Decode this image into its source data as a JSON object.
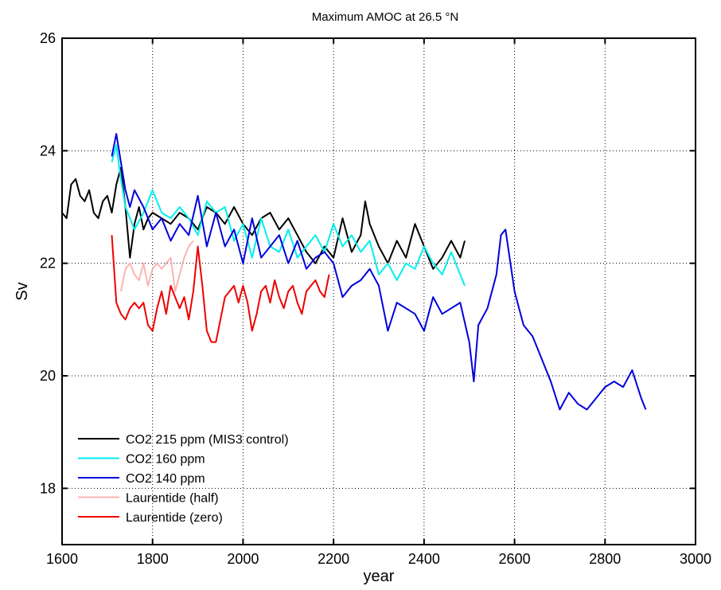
{
  "chart_data": {
    "type": "line",
    "title": "Maximum AMOC at 26.5 °N",
    "xlabel": "year",
    "ylabel": "Sv",
    "xlim": [
      1600,
      3000
    ],
    "ylim": [
      17,
      26
    ],
    "grid": true,
    "legend_position": "bottom-left",
    "x_ticks": [
      "1600",
      "1800",
      "2000",
      "2200",
      "2400",
      "2600",
      "2800",
      "3000"
    ],
    "y_ticks": [
      "18",
      "20",
      "22",
      "24",
      "26"
    ],
    "series": [
      {
        "name": "CO2 215 ppm (MIS3 control)",
        "color": "#000000",
        "x": [
          1600,
          1610,
          1620,
          1630,
          1640,
          1650,
          1660,
          1670,
          1680,
          1690,
          1700,
          1710,
          1720,
          1730,
          1740,
          1750,
          1760,
          1770,
          1780,
          1790,
          1800,
          1820,
          1840,
          1860,
          1880,
          1900,
          1920,
          1940,
          1960,
          1980,
          2000,
          2020,
          2040,
          2060,
          2080,
          2100,
          2120,
          2140,
          2160,
          2180,
          2200,
          2220,
          2240,
          2260,
          2270,
          2280,
          2300,
          2320,
          2340,
          2360,
          2380,
          2400,
          2420,
          2440,
          2460,
          2480,
          2490
        ],
        "y": [
          22.9,
          22.8,
          23.4,
          23.5,
          23.2,
          23.1,
          23.3,
          22.9,
          22.8,
          23.1,
          23.2,
          22.9,
          23.4,
          23.7,
          23.0,
          22.1,
          22.7,
          23.0,
          22.6,
          22.8,
          22.9,
          22.8,
          22.7,
          22.9,
          22.8,
          22.6,
          23.0,
          22.9,
          22.7,
          23.0,
          22.7,
          22.5,
          22.8,
          22.9,
          22.6,
          22.8,
          22.5,
          22.2,
          22.0,
          22.3,
          22.1,
          22.8,
          22.2,
          22.5,
          23.1,
          22.7,
          22.3,
          22.0,
          22.4,
          22.1,
          22.7,
          22.3,
          21.9,
          22.1,
          22.4,
          22.1,
          22.4
        ]
      },
      {
        "name": "CO2 160 ppm",
        "color": "#00eeee",
        "x": [
          1710,
          1720,
          1730,
          1740,
          1750,
          1760,
          1780,
          1800,
          1820,
          1840,
          1860,
          1880,
          1900,
          1920,
          1940,
          1960,
          1980,
          2000,
          2020,
          2040,
          2060,
          2080,
          2100,
          2120,
          2140,
          2160,
          2180,
          2200,
          2220,
          2240,
          2260,
          2280,
          2300,
          2320,
          2340,
          2360,
          2380,
          2400,
          2420,
          2440,
          2460,
          2480,
          2490
        ],
        "y": [
          23.8,
          24.1,
          23.5,
          23.0,
          22.8,
          22.6,
          22.9,
          23.3,
          22.9,
          22.8,
          23.0,
          22.8,
          22.5,
          23.1,
          22.9,
          23.0,
          22.4,
          22.7,
          22.1,
          22.8,
          22.3,
          22.2,
          22.6,
          22.1,
          22.3,
          22.5,
          22.2,
          22.7,
          22.3,
          22.5,
          22.2,
          22.4,
          21.8,
          22.0,
          21.7,
          22.0,
          21.9,
          22.3,
          22.0,
          21.8,
          22.2,
          21.8,
          21.6
        ]
      },
      {
        "name": "CO2 140 ppm",
        "color": "#0000dd",
        "x": [
          1710,
          1720,
          1730,
          1740,
          1750,
          1760,
          1780,
          1800,
          1820,
          1840,
          1860,
          1880,
          1900,
          1920,
          1940,
          1960,
          1980,
          2000,
          2020,
          2040,
          2060,
          2080,
          2100,
          2120,
          2140,
          2160,
          2180,
          2200,
          2220,
          2240,
          2260,
          2280,
          2300,
          2320,
          2340,
          2360,
          2380,
          2400,
          2420,
          2440,
          2460,
          2480,
          2500,
          2510,
          2520,
          2540,
          2560,
          2570,
          2580,
          2600,
          2620,
          2640,
          2660,
          2680,
          2700,
          2720,
          2740,
          2760,
          2780,
          2800,
          2820,
          2840,
          2860,
          2880,
          2890
        ],
        "y": [
          23.9,
          24.3,
          23.8,
          23.3,
          23.0,
          23.3,
          23.0,
          22.6,
          22.8,
          22.4,
          22.7,
          22.5,
          23.2,
          22.3,
          22.9,
          22.3,
          22.6,
          22.0,
          22.8,
          22.1,
          22.3,
          22.5,
          22.0,
          22.4,
          21.9,
          22.1,
          22.2,
          22.0,
          21.4,
          21.6,
          21.7,
          21.9,
          21.6,
          20.8,
          21.3,
          21.2,
          21.1,
          20.8,
          21.4,
          21.1,
          21.2,
          21.3,
          20.6,
          19.9,
          20.9,
          21.2,
          21.8,
          22.5,
          22.6,
          21.5,
          20.9,
          20.7,
          20.3,
          19.9,
          19.4,
          19.7,
          19.5,
          19.4,
          19.6,
          19.8,
          19.9,
          19.8,
          20.1,
          19.6,
          19.4
        ]
      },
      {
        "name": "Laurentide (half)",
        "color": "#ffb3b3",
        "x": [
          1730,
          1740,
          1750,
          1760,
          1770,
          1780,
          1790,
          1800,
          1810,
          1820,
          1830,
          1840,
          1850,
          1860,
          1870,
          1880,
          1890
        ],
        "y": [
          21.5,
          21.9,
          22.0,
          21.8,
          21.7,
          22.0,
          21.6,
          21.9,
          22.0,
          21.9,
          22.0,
          22.1,
          21.5,
          21.8,
          22.1,
          22.3,
          22.4
        ]
      },
      {
        "name": "Laurentide (zero)",
        "color": "#ee0000",
        "x": [
          1710,
          1720,
          1730,
          1740,
          1750,
          1760,
          1770,
          1780,
          1790,
          1800,
          1810,
          1820,
          1830,
          1840,
          1850,
          1860,
          1870,
          1880,
          1890,
          1900,
          1910,
          1920,
          1930,
          1940,
          1950,
          1960,
          1970,
          1980,
          1990,
          2000,
          2010,
          2020,
          2030,
          2040,
          2050,
          2060,
          2070,
          2080,
          2090,
          2100,
          2110,
          2120,
          2130,
          2140,
          2150,
          2160,
          2170,
          2180,
          2190
        ],
        "y": [
          22.5,
          21.3,
          21.1,
          21.0,
          21.2,
          21.3,
          21.2,
          21.3,
          20.9,
          20.8,
          21.2,
          21.5,
          21.1,
          21.6,
          21.4,
          21.2,
          21.4,
          21.0,
          21.5,
          22.3,
          21.6,
          20.8,
          20.6,
          20.6,
          21.0,
          21.4,
          21.5,
          21.6,
          21.3,
          21.6,
          21.3,
          20.8,
          21.1,
          21.5,
          21.6,
          21.3,
          21.7,
          21.4,
          21.2,
          21.5,
          21.6,
          21.3,
          21.1,
          21.5,
          21.6,
          21.7,
          21.5,
          21.4,
          21.8
        ]
      }
    ]
  }
}
